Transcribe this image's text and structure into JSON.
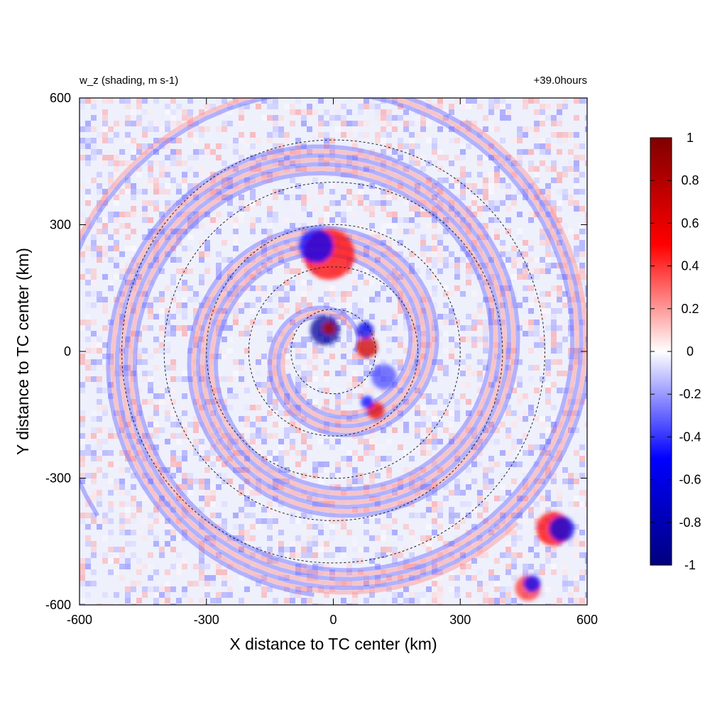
{
  "chart_data": {
    "type": "heatmap",
    "title_left": "w_z (shading, m s-1)",
    "title_right": "+39.0hours",
    "xlabel": "X distance to TC center (km)",
    "ylabel": "Y distance to TC center (km)",
    "xlim": [
      -600,
      600
    ],
    "ylim": [
      -600,
      600
    ],
    "x_ticks": [
      {
        "value": -600,
        "label": "-600"
      },
      {
        "value": -300,
        "label": "-300"
      },
      {
        "value": 0,
        "label": "0"
      },
      {
        "value": 300,
        "label": "300"
      },
      {
        "value": 600,
        "label": "600"
      }
    ],
    "y_ticks": [
      {
        "value": 600,
        "label": "600"
      },
      {
        "value": 300,
        "label": "300"
      },
      {
        "value": 0,
        "label": "0"
      },
      {
        "value": -300,
        "label": "-300"
      },
      {
        "value": -600,
        "label": "-600"
      }
    ],
    "range_circles_km": [
      100,
      200,
      300,
      400,
      500
    ],
    "colorbar": {
      "min": -1,
      "max": 1,
      "ticks": [
        {
          "value": 1,
          "label": "1"
        },
        {
          "value": 0.8,
          "label": "0.8"
        },
        {
          "value": 0.6,
          "label": "0.6"
        },
        {
          "value": 0.4,
          "label": "0.4"
        },
        {
          "value": 0.2,
          "label": "0.2"
        },
        {
          "value": 0,
          "label": "0"
        },
        {
          "value": -0.2,
          "label": "-0.2"
        },
        {
          "value": -0.4,
          "label": "-0.4"
        },
        {
          "value": -0.6,
          "label": "-0.6"
        },
        {
          "value": -0.8,
          "label": "-0.8"
        },
        {
          "value": -1,
          "label": "-1"
        }
      ],
      "colors": [
        "#00007f",
        "#0000ff",
        "#ffffff",
        "#ff0000",
        "#7f0000"
      ]
    },
    "features": [
      {
        "x": -20,
        "y": 50,
        "r": 35,
        "value": -0.9
      },
      {
        "x": -10,
        "y": 55,
        "r": 15,
        "value": 0.8
      },
      {
        "x": 80,
        "y": 10,
        "r": 25,
        "value": 0.7
      },
      {
        "x": 75,
        "y": 50,
        "r": 20,
        "value": -0.6
      },
      {
        "x": 100,
        "y": -140,
        "r": 20,
        "value": 0.6
      },
      {
        "x": 80,
        "y": -120,
        "r": 15,
        "value": -0.5
      },
      {
        "x": -10,
        "y": 230,
        "r": 60,
        "value": 0.5
      },
      {
        "x": -40,
        "y": 250,
        "r": 40,
        "value": -0.5
      },
      {
        "x": 120,
        "y": -60,
        "r": 30,
        "value": -0.35
      },
      {
        "x": 520,
        "y": -420,
        "r": 40,
        "value": 0.5
      },
      {
        "x": 540,
        "y": -420,
        "r": 30,
        "value": -0.6
      },
      {
        "x": 460,
        "y": -560,
        "r": 30,
        "value": 0.4
      },
      {
        "x": 470,
        "y": -550,
        "r": 20,
        "value": -0.5
      }
    ]
  }
}
